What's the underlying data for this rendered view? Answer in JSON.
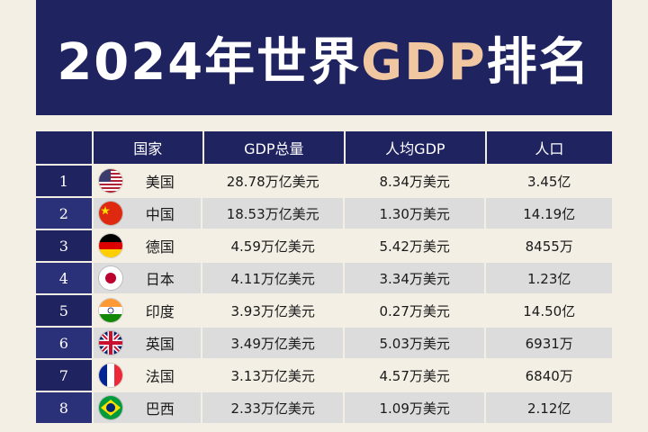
{
  "title": {
    "pre": "2024年世界",
    "highlight": "GDP",
    "post": "排名"
  },
  "table": {
    "headers": [
      "",
      "国家",
      "GDP总量",
      "人均GDP",
      "人口"
    ],
    "rows": [
      {
        "rank": "1",
        "country": "美国",
        "flag": "us-flag-icon",
        "gdp": "28.78万亿美元",
        "per_capita": "8.34万美元",
        "population": "3.45亿"
      },
      {
        "rank": "2",
        "country": "中国",
        "flag": "china-flag-icon",
        "gdp": "18.53万亿美元",
        "per_capita": "1.30万美元",
        "population": "14.19亿"
      },
      {
        "rank": "3",
        "country": "德国",
        "flag": "germany-flag-icon",
        "gdp": "4.59万亿美元",
        "per_capita": "5.42万美元",
        "population": "8455万"
      },
      {
        "rank": "4",
        "country": "日本",
        "flag": "japan-flag-icon",
        "gdp": "4.11万亿美元",
        "per_capita": "3.34万美元",
        "population": "1.23亿"
      },
      {
        "rank": "5",
        "country": "印度",
        "flag": "india-flag-icon",
        "gdp": "3.93万亿美元",
        "per_capita": "0.27万美元",
        "population": "14.50亿"
      },
      {
        "rank": "6",
        "country": "英国",
        "flag": "uk-flag-icon",
        "gdp": "3.49万亿美元",
        "per_capita": "5.03万美元",
        "population": "6931万"
      },
      {
        "rank": "7",
        "country": "法国",
        "flag": "france-flag-icon",
        "gdp": "3.13万亿美元",
        "per_capita": "4.57万美元",
        "population": "6840万"
      },
      {
        "rank": "8",
        "country": "巴西",
        "flag": "brazil-flag-icon",
        "gdp": "2.33万亿美元",
        "per_capita": "1.09万美元",
        "population": "2.12亿"
      }
    ]
  },
  "colors": {
    "navy": "#1f2360",
    "highlight": "#f0c7a0",
    "row_alt": "#dcdcdc",
    "background": "#f4efe4"
  }
}
